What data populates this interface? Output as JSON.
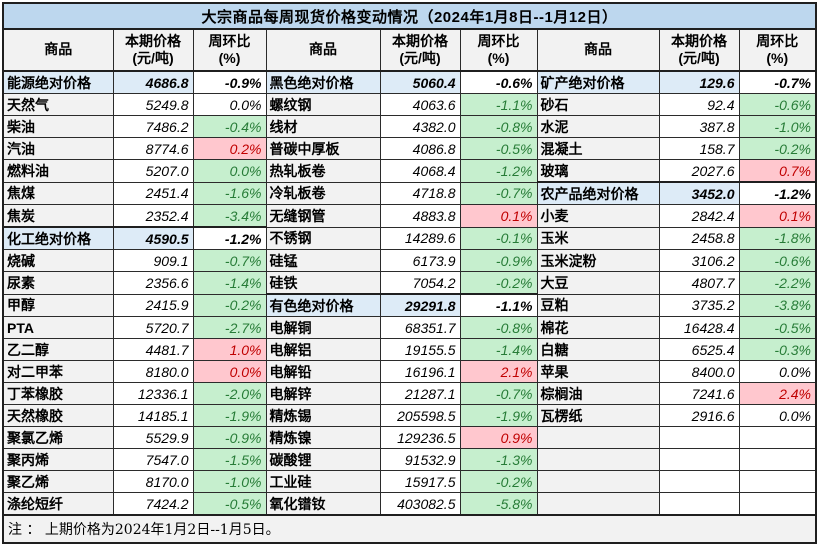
{
  "title": "大宗商品每周现货价格变动情况（2024年1月8日--1月12日）",
  "columns": {
    "commodity": "商品",
    "price1": "本期价格",
    "price2": "(元/吨)",
    "pct1": "周环比",
    "pct2": "(%)"
  },
  "note": "注 ： 上期价格为2024年1月2日--1月5日。",
  "colors": {
    "title_bg": "#BDD7EE",
    "category_bg": "#DDEBF7",
    "name_bg": "#F2F2F2",
    "down_bg": "#C6EFCE",
    "down_text": "#277C37",
    "up_bg": "#FFC7CE",
    "up_text": "#C00000",
    "border": "#1F1F1F"
  },
  "groups": [
    {
      "rows": [
        {
          "n": "能源绝对价格",
          "p": "4686.8",
          "c": "-0.9%",
          "s": "cat"
        },
        {
          "n": "天然气",
          "p": "5249.8",
          "c": "0.0%",
          "s": "flat"
        },
        {
          "n": "柴油",
          "p": "7486.2",
          "c": "-0.4%",
          "s": "green"
        },
        {
          "n": "汽油",
          "p": "8774.6",
          "c": "0.2%",
          "s": "red"
        },
        {
          "n": "燃料油",
          "p": "5207.0",
          "c": "0.0%",
          "s": "green"
        },
        {
          "n": "焦煤",
          "p": "2451.4",
          "c": "-1.6%",
          "s": "green"
        },
        {
          "n": "焦炭",
          "p": "2352.4",
          "c": "-3.4%",
          "s": "green"
        },
        {
          "n": "化工绝对价格",
          "p": "4590.5",
          "c": "-1.2%",
          "s": "cat"
        },
        {
          "n": "烧碱",
          "p": "909.1",
          "c": "-0.7%",
          "s": "green"
        },
        {
          "n": "尿素",
          "p": "2356.6",
          "c": "-1.4%",
          "s": "green"
        },
        {
          "n": "甲醇",
          "p": "2415.9",
          "c": "-0.2%",
          "s": "green"
        },
        {
          "n": "PTA",
          "p": "5720.7",
          "c": "-2.7%",
          "s": "green"
        },
        {
          "n": "乙二醇",
          "p": "4481.7",
          "c": "1.0%",
          "s": "red"
        },
        {
          "n": "对二甲苯",
          "p": "8180.0",
          "c": "0.0%",
          "s": "red"
        },
        {
          "n": "丁苯橡胶",
          "p": "12336.1",
          "c": "-2.0%",
          "s": "green"
        },
        {
          "n": "天然橡胶",
          "p": "14185.1",
          "c": "-1.9%",
          "s": "green"
        },
        {
          "n": "聚氯乙烯",
          "p": "5529.9",
          "c": "-0.9%",
          "s": "green"
        },
        {
          "n": "聚丙烯",
          "p": "7547.0",
          "c": "-1.5%",
          "s": "green"
        },
        {
          "n": "聚乙烯",
          "p": "8170.0",
          "c": "-1.0%",
          "s": "green"
        },
        {
          "n": "涤纶短纤",
          "p": "7424.2",
          "c": "-0.5%",
          "s": "green"
        }
      ]
    },
    {
      "rows": [
        {
          "n": "黑色绝对价格",
          "p": "5060.4",
          "c": "-0.6%",
          "s": "cat"
        },
        {
          "n": "螺纹钢",
          "p": "4063.6",
          "c": "-1.1%",
          "s": "green"
        },
        {
          "n": "线材",
          "p": "4382.0",
          "c": "-0.8%",
          "s": "green"
        },
        {
          "n": "普碳中厚板",
          "p": "4086.8",
          "c": "-0.5%",
          "s": "green"
        },
        {
          "n": "热轧板卷",
          "p": "4068.4",
          "c": "-1.2%",
          "s": "green"
        },
        {
          "n": "冷轧板卷",
          "p": "4718.8",
          "c": "-0.7%",
          "s": "green"
        },
        {
          "n": "无缝钢管",
          "p": "4883.8",
          "c": "0.1%",
          "s": "red"
        },
        {
          "n": "不锈钢",
          "p": "14289.6",
          "c": "-0.1%",
          "s": "green"
        },
        {
          "n": "硅锰",
          "p": "6173.9",
          "c": "-0.9%",
          "s": "green"
        },
        {
          "n": "硅铁",
          "p": "7054.2",
          "c": "-0.2%",
          "s": "green"
        },
        {
          "n": "有色绝对价格",
          "p": "29291.8",
          "c": "-1.1%",
          "s": "cat"
        },
        {
          "n": "电解铜",
          "p": "68351.7",
          "c": "-0.8%",
          "s": "green"
        },
        {
          "n": "电解铝",
          "p": "19155.5",
          "c": "-1.4%",
          "s": "green"
        },
        {
          "n": "电解铅",
          "p": "16196.1",
          "c": "2.1%",
          "s": "red"
        },
        {
          "n": "电解锌",
          "p": "21287.1",
          "c": "-0.7%",
          "s": "green"
        },
        {
          "n": "精炼锡",
          "p": "205598.5",
          "c": "-1.9%",
          "s": "green"
        },
        {
          "n": "精炼镍",
          "p": "129236.5",
          "c": "0.9%",
          "s": "red"
        },
        {
          "n": "碳酸锂",
          "p": "91532.9",
          "c": "-1.3%",
          "s": "green"
        },
        {
          "n": "工业硅",
          "p": "15917.5",
          "c": "-0.2%",
          "s": "green"
        },
        {
          "n": "氧化镨钕",
          "p": "403082.5",
          "c": "-5.8%",
          "s": "green"
        }
      ]
    },
    {
      "rows": [
        {
          "n": "矿产绝对价格",
          "p": "129.6",
          "c": "-0.7%",
          "s": "cat"
        },
        {
          "n": "砂石",
          "p": "92.4",
          "c": "-0.6%",
          "s": "green"
        },
        {
          "n": "水泥",
          "p": "387.8",
          "c": "-1.0%",
          "s": "green"
        },
        {
          "n": "混凝土",
          "p": "158.7",
          "c": "-0.2%",
          "s": "green"
        },
        {
          "n": "玻璃",
          "p": "2027.6",
          "c": "0.7%",
          "s": "red"
        },
        {
          "n": "农产品绝对价格",
          "p": "3452.0",
          "c": "-1.2%",
          "s": "cat"
        },
        {
          "n": "小麦",
          "p": "2842.4",
          "c": "0.1%",
          "s": "red"
        },
        {
          "n": "玉米",
          "p": "2458.8",
          "c": "-1.8%",
          "s": "green"
        },
        {
          "n": "玉米淀粉",
          "p": "3106.2",
          "c": "-0.6%",
          "s": "green"
        },
        {
          "n": "大豆",
          "p": "4807.7",
          "c": "-2.2%",
          "s": "green"
        },
        {
          "n": "豆粕",
          "p": "3735.2",
          "c": "-3.8%",
          "s": "green"
        },
        {
          "n": "棉花",
          "p": "16428.4",
          "c": "-0.5%",
          "s": "green"
        },
        {
          "n": "白糖",
          "p": "6525.4",
          "c": "-0.3%",
          "s": "green"
        },
        {
          "n": "苹果",
          "p": "8400.0",
          "c": "0.0%",
          "s": "flat"
        },
        {
          "n": "棕榈油",
          "p": "7241.6",
          "c": "2.4%",
          "s": "red"
        },
        {
          "n": "瓦楞纸",
          "p": "2916.6",
          "c": "0.0%",
          "s": "flat"
        },
        {
          "n": "",
          "p": "",
          "c": "",
          "s": "empty"
        },
        {
          "n": "",
          "p": "",
          "c": "",
          "s": "empty"
        },
        {
          "n": "",
          "p": "",
          "c": "",
          "s": "empty"
        },
        {
          "n": "",
          "p": "",
          "c": "",
          "s": "empty"
        }
      ]
    }
  ]
}
